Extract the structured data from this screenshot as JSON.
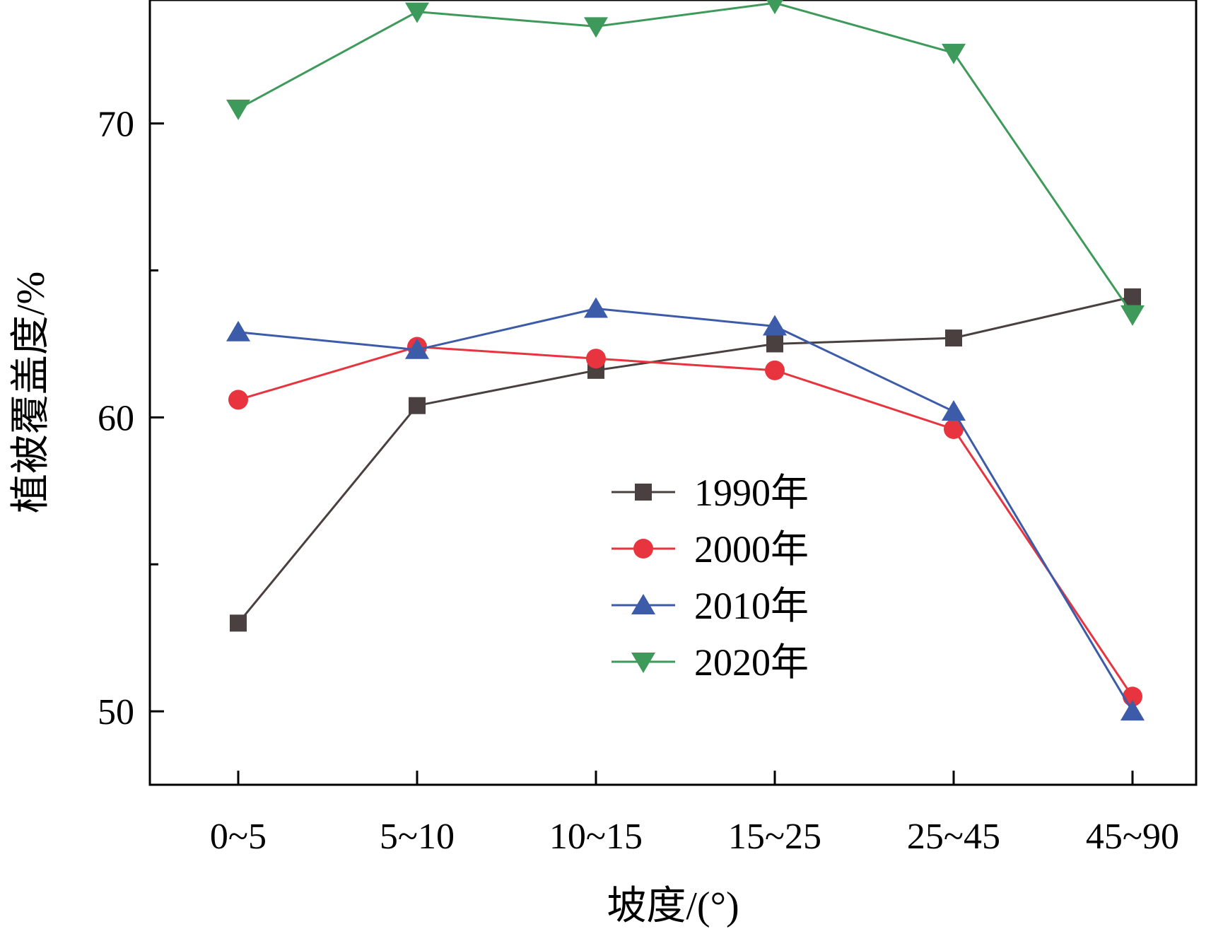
{
  "chart_data": {
    "type": "line",
    "title": "",
    "xlabel": "坡度/(°)",
    "ylabel": "植被覆盖度/%",
    "categories": [
      "0~5",
      "5~10",
      "10~15",
      "15~25",
      "25~45",
      "45~90"
    ],
    "ylim": [
      47.5,
      74.2
    ],
    "yticks": [
      50,
      60,
      70
    ],
    "yminor_ticks": [
      55,
      65
    ],
    "grid": false,
    "legend_position": "center-right",
    "series": [
      {
        "name": "1990年",
        "color": "#4a4040",
        "marker": "square",
        "values": [
          53.0,
          60.4,
          61.6,
          62.5,
          62.7,
          64.1
        ]
      },
      {
        "name": "2000年",
        "color": "#e8343e",
        "marker": "circle",
        "values": [
          60.6,
          62.4,
          62.0,
          61.6,
          59.6,
          50.5
        ]
      },
      {
        "name": "2010年",
        "color": "#3c5ba8",
        "marker": "triangle-up",
        "values": [
          62.9,
          62.3,
          63.7,
          63.1,
          60.2,
          50.0
        ]
      },
      {
        "name": "2020年",
        "color": "#3e9a5a",
        "marker": "triangle-down",
        "values": [
          70.5,
          73.8,
          73.3,
          74.1,
          72.4,
          63.5
        ]
      }
    ]
  }
}
